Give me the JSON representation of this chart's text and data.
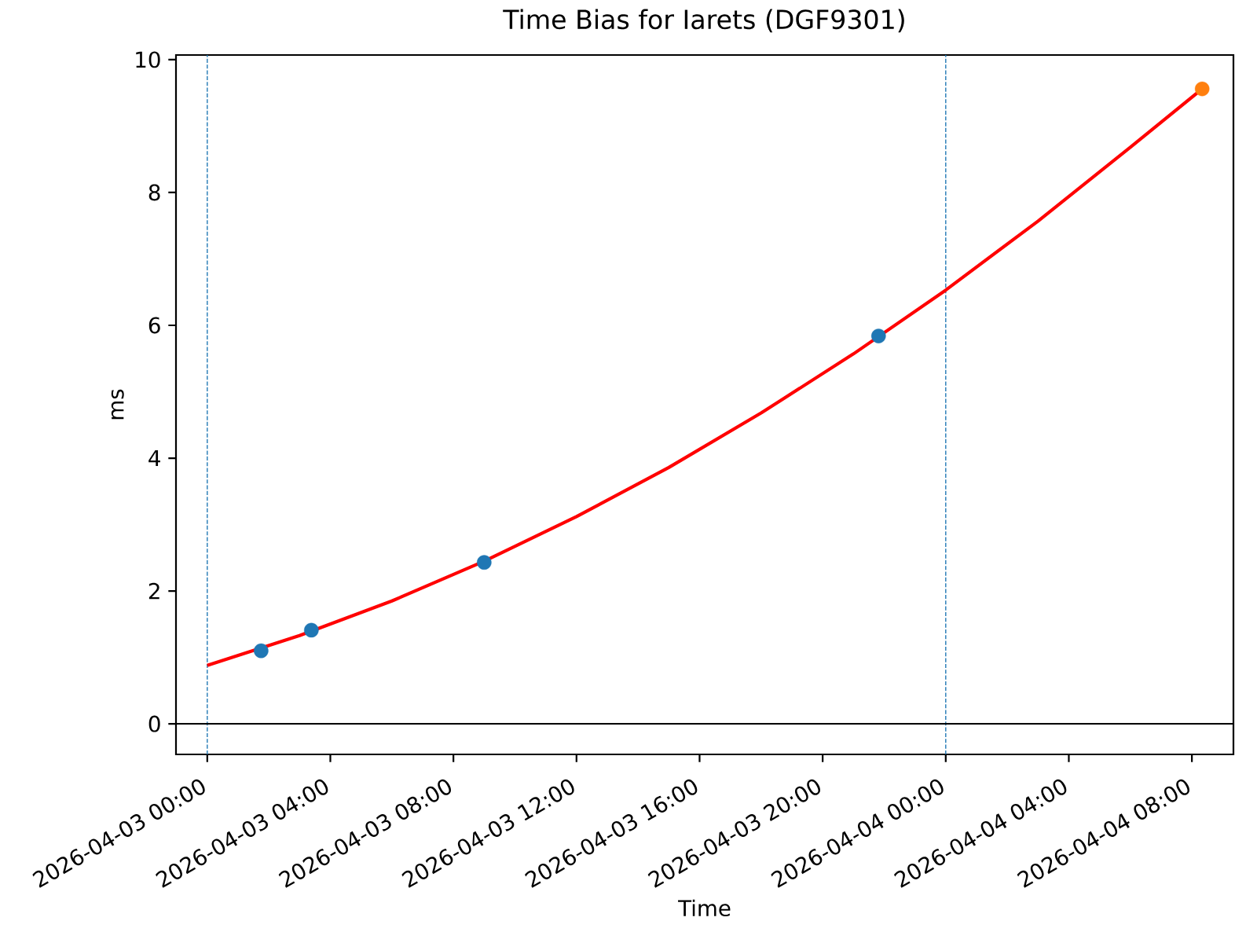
{
  "chart_data": {
    "type": "scatter",
    "title": "Time Bias for Iarets (DGF9301)",
    "xlabel": "Time",
    "ylabel": "ms",
    "xlim": [
      "2026-04-02T22:59",
      "2026-04-04T09:21"
    ],
    "ylim": [
      -0.46,
      10.07
    ],
    "xticks": [
      {
        "value": "2026-04-03T00:00",
        "label": "2026-04-03 00:00"
      },
      {
        "value": "2026-04-03T04:00",
        "label": "2026-04-03 04:00"
      },
      {
        "value": "2026-04-03T08:00",
        "label": "2026-04-03 08:00"
      },
      {
        "value": "2026-04-03T12:00",
        "label": "2026-04-03 12:00"
      },
      {
        "value": "2026-04-03T16:00",
        "label": "2026-04-03 16:00"
      },
      {
        "value": "2026-04-03T20:00",
        "label": "2026-04-03 20:00"
      },
      {
        "value": "2026-04-04T00:00",
        "label": "2026-04-04 00:00"
      },
      {
        "value": "2026-04-04T04:00",
        "label": "2026-04-04 04:00"
      },
      {
        "value": "2026-04-04T08:00",
        "label": "2026-04-04 08:00"
      }
    ],
    "yticks": [
      0,
      2,
      4,
      6,
      8,
      10
    ],
    "series": [
      {
        "type": "line",
        "color": "#ff0000",
        "line_style": "solid",
        "x": [
          "2026-04-03T00:00",
          "2026-04-03T03:00",
          "2026-04-03T06:00",
          "2026-04-03T09:00",
          "2026-04-03T12:00",
          "2026-04-03T15:00",
          "2026-04-03T18:00",
          "2026-04-03T21:00",
          "2026-04-04T00:00",
          "2026-04-04T03:00",
          "2026-04-04T06:00",
          "2026-04-04T08:20"
        ],
        "values": [
          0.88,
          1.33,
          1.85,
          2.45,
          3.12,
          3.86,
          4.68,
          5.57,
          6.53,
          7.57,
          8.68,
          9.56
        ]
      },
      {
        "color": "#1f77b4",
        "marker": "circle",
        "x": [
          "2026-04-03T01:45",
          "2026-04-03T03:23",
          "2026-04-03T09:00",
          "2026-04-03T21:49"
        ],
        "values": [
          1.1,
          1.41,
          2.43,
          5.84
        ]
      },
      {
        "color": "#ff7f0e",
        "marker": "circle",
        "x": [
          "2026-04-04T08:20"
        ],
        "values": [
          9.56
        ]
      }
    ],
    "ref_lines": [
      {
        "axis": "x",
        "value": "2026-04-03T00:00",
        "color": "#1f77b4",
        "line_style": "dashed"
      },
      {
        "axis": "x",
        "value": "2026-04-04T00:00",
        "color": "#1f77b4",
        "line_style": "dashed"
      },
      {
        "axis": "y",
        "value": 0,
        "color": "#000000",
        "line_style": "solid"
      }
    ]
  }
}
